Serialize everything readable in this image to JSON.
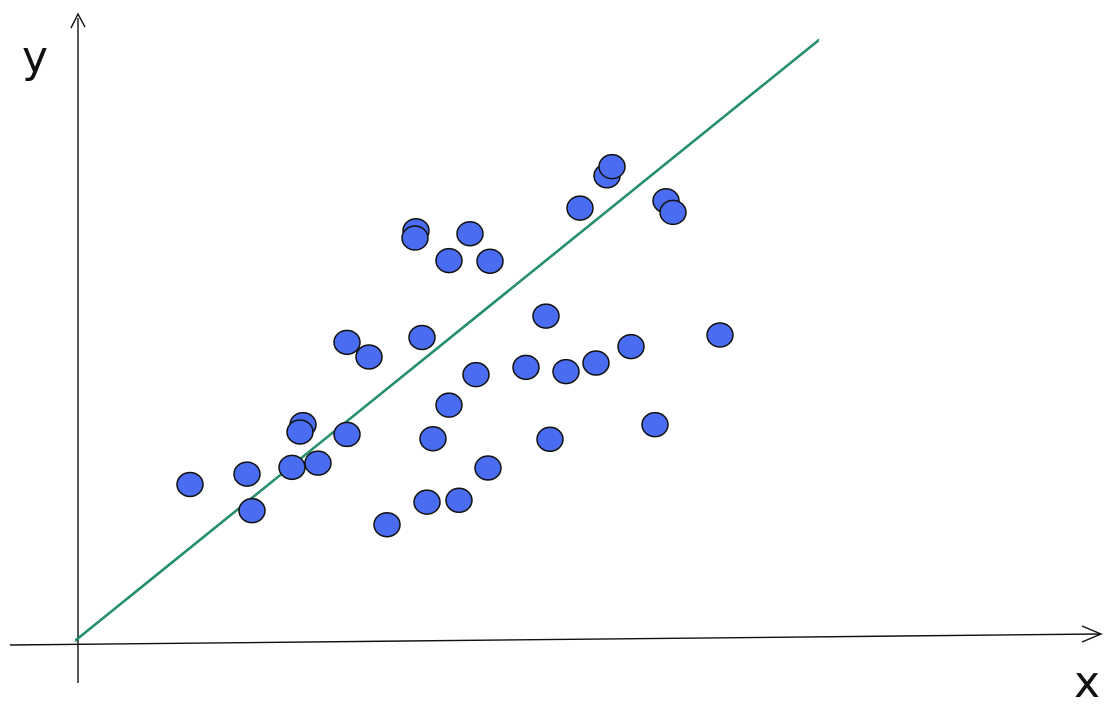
{
  "chart_data": {
    "type": "scatter",
    "title": "",
    "xlabel": "x",
    "ylabel": "y",
    "xlim": [
      0,
      1
    ],
    "ylim": [
      0,
      1
    ],
    "grid": false,
    "legend": "none",
    "colors": {
      "point": "#4a6cf0",
      "point_stroke": "#111111",
      "trend": "#1e8a66",
      "axis": "#111111"
    },
    "points": {
      "x": [
        0.115,
        0.172,
        0.177,
        0.217,
        0.228,
        0.225,
        0.243,
        0.272,
        0.272,
        0.294,
        0.312,
        0.341,
        0.34,
        0.347,
        0.358,
        0.352,
        0.374,
        0.374,
        0.384,
        0.395,
        0.401,
        0.413,
        0.415,
        0.451,
        0.471,
        0.475,
        0.491,
        0.505,
        0.521,
        0.532,
        0.537,
        0.556,
        0.58,
        0.591,
        0.598,
        0.645
      ],
      "y": [
        0.255,
        0.272,
        0.212,
        0.283,
        0.353,
        0.341,
        0.29,
        0.337,
        0.488,
        0.464,
        0.189,
        0.671,
        0.659,
        0.496,
        0.33,
        0.226,
        0.385,
        0.622,
        0.229,
        0.666,
        0.435,
        0.282,
        0.621,
        0.447,
        0.531,
        0.329,
        0.44,
        0.708,
        0.454,
        0.761,
        0.776,
        0.481,
        0.353,
        0.72,
        0.701,
        0.5
      ]
    },
    "trendline": {
      "x": [
        0,
        0.744
      ],
      "y": [
        0,
        0.985
      ]
    }
  }
}
